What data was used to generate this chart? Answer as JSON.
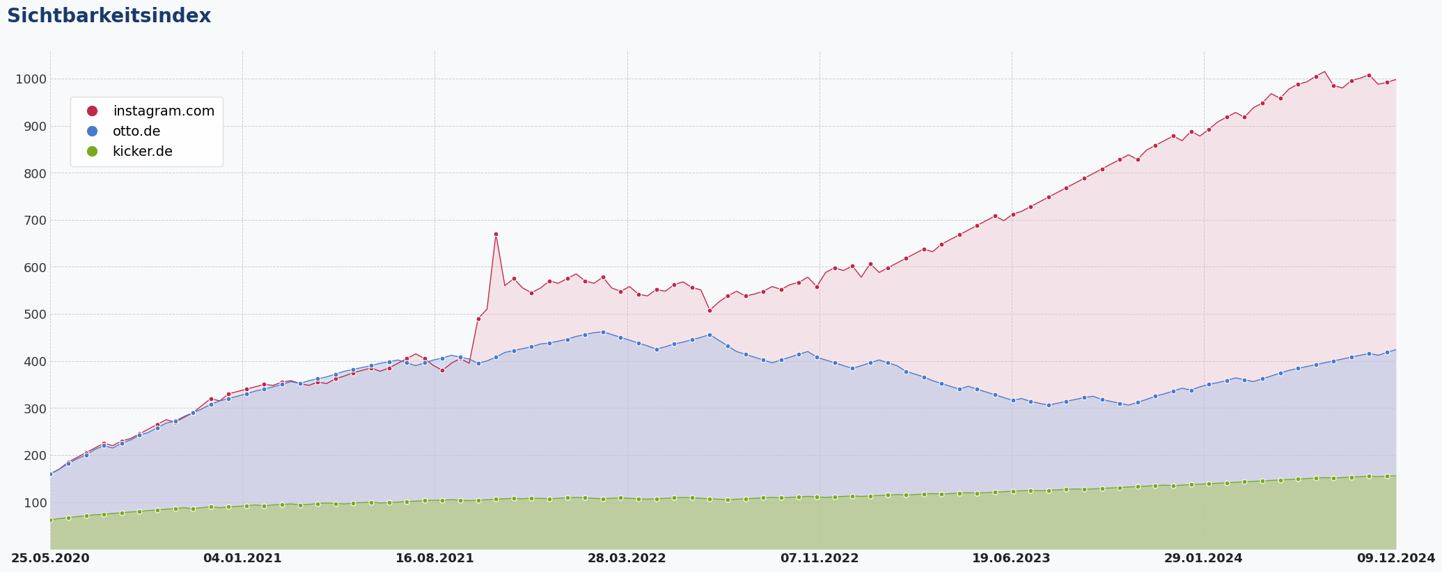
{
  "title": "Sichtbarkeitsindex",
  "title_color": "#1a3a6b",
  "title_fontsize": 20,
  "background_color": "#f8f9fb",
  "plot_background": "#f8f9fb",
  "grid_color": "#c8c8c8",
  "yticks": [
    100,
    200,
    300,
    400,
    500,
    600,
    700,
    800,
    900,
    1000
  ],
  "xtick_labels": [
    "25.05.2020",
    "04.01.2021",
    "16.08.2021",
    "28.03.2022",
    "07.11.2022",
    "19.06.2023",
    "29.01.2024",
    "09.12.2024"
  ],
  "series": {
    "instagram": {
      "label": "instagram.com",
      "color": "#c0294a",
      "fill_color": "#e8b0bc",
      "marker_color": "#c0294a"
    },
    "otto": {
      "label": "otto.de",
      "color": "#4a7acc",
      "fill_color": "#b8c8e8",
      "marker_color": "#4a7acc"
    },
    "kicker": {
      "label": "kicker.de",
      "color": "#7aaa20",
      "fill_color": "#b8cc88",
      "marker_color": "#7aaa20"
    }
  },
  "instagram_data": [
    160,
    170,
    185,
    195,
    205,
    215,
    225,
    220,
    230,
    235,
    245,
    255,
    265,
    275,
    270,
    280,
    290,
    305,
    320,
    315,
    330,
    335,
    340,
    345,
    350,
    348,
    355,
    358,
    352,
    348,
    355,
    352,
    362,
    368,
    375,
    380,
    385,
    378,
    385,
    395,
    405,
    415,
    405,
    390,
    380,
    395,
    405,
    395,
    490,
    510,
    670,
    560,
    575,
    555,
    545,
    555,
    570,
    565,
    575,
    585,
    570,
    565,
    578,
    555,
    548,
    558,
    542,
    538,
    552,
    548,
    562,
    568,
    556,
    551,
    508,
    525,
    538,
    548,
    538,
    542,
    548,
    558,
    552,
    562,
    567,
    578,
    558,
    588,
    598,
    592,
    602,
    578,
    607,
    588,
    598,
    608,
    618,
    628,
    638,
    632,
    648,
    658,
    668,
    678,
    688,
    698,
    708,
    698,
    712,
    718,
    728,
    738,
    748,
    758,
    768,
    778,
    788,
    798,
    808,
    818,
    828,
    838,
    828,
    848,
    858,
    868,
    878,
    868,
    888,
    878,
    892,
    908,
    918,
    928,
    918,
    938,
    948,
    968,
    958,
    978,
    988,
    993,
    1005,
    1015,
    985,
    980,
    996,
    1001,
    1008,
    988,
    992,
    998
  ],
  "otto_data": [
    160,
    170,
    182,
    192,
    200,
    212,
    220,
    215,
    225,
    232,
    242,
    248,
    258,
    268,
    272,
    282,
    290,
    298,
    308,
    315,
    320,
    325,
    330,
    336,
    340,
    345,
    350,
    356,
    352,
    358,
    362,
    366,
    372,
    378,
    382,
    386,
    390,
    395,
    398,
    402,
    396,
    390,
    396,
    402,
    406,
    412,
    408,
    404,
    395,
    400,
    408,
    418,
    422,
    426,
    430,
    436,
    438,
    442,
    446,
    452,
    456,
    460,
    462,
    456,
    450,
    444,
    438,
    432,
    425,
    430,
    436,
    440,
    445,
    450,
    456,
    444,
    432,
    420,
    414,
    408,
    402,
    396,
    402,
    408,
    414,
    420,
    408,
    402,
    396,
    390,
    384,
    390,
    396,
    402,
    396,
    390,
    378,
    372,
    366,
    358,
    352,
    346,
    340,
    346,
    340,
    334,
    328,
    322,
    316,
    320,
    314,
    310,
    306,
    310,
    314,
    318,
    322,
    325,
    318,
    314,
    310,
    306,
    312,
    318,
    325,
    330,
    336,
    342,
    338,
    345,
    350,
    354,
    358,
    364,
    360,
    356,
    362,
    368,
    374,
    380,
    384,
    388,
    392,
    396,
    400,
    404,
    408,
    412,
    416,
    412,
    418,
    424
  ],
  "kicker_data": [
    62,
    65,
    67,
    69,
    71,
    73,
    74,
    76,
    77,
    79,
    80,
    82,
    83,
    85,
    86,
    88,
    86,
    88,
    90,
    88,
    90,
    91,
    92,
    94,
    92,
    94,
    95,
    96,
    94,
    95,
    97,
    98,
    97,
    96,
    98,
    99,
    100,
    98,
    99,
    100,
    101,
    102,
    103,
    104,
    104,
    105,
    104,
    103,
    104,
    105,
    106,
    107,
    108,
    107,
    108,
    108,
    107,
    108,
    109,
    110,
    109,
    108,
    107,
    108,
    109,
    108,
    107,
    106,
    107,
    108,
    109,
    110,
    109,
    108,
    107,
    106,
    105,
    106,
    107,
    108,
    109,
    110,
    109,
    110,
    111,
    112,
    111,
    110,
    111,
    112,
    113,
    112,
    113,
    114,
    115,
    116,
    115,
    116,
    117,
    118,
    117,
    118,
    119,
    120,
    119,
    120,
    121,
    122,
    123,
    124,
    125,
    124,
    125,
    126,
    127,
    128,
    127,
    128,
    129,
    130,
    131,
    132,
    133,
    134,
    135,
    136,
    135,
    136,
    137,
    138,
    139,
    140,
    141,
    142,
    143,
    144,
    145,
    146,
    147,
    148,
    149,
    150,
    151,
    152,
    151,
    152,
    153,
    154,
    155,
    154,
    155,
    156
  ],
  "ylim": [
    0,
    1060
  ],
  "figsize": [
    20.78,
    8.96
  ]
}
